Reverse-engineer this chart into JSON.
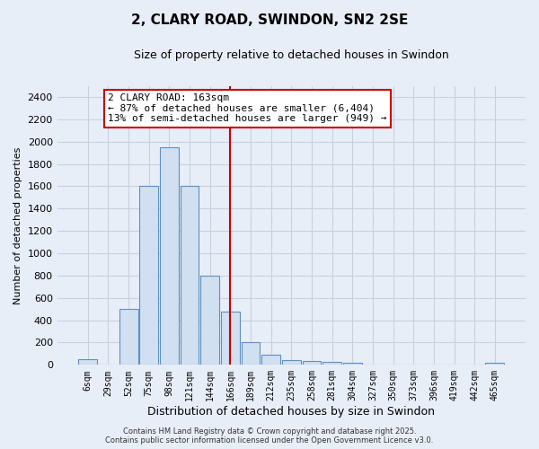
{
  "title": "2, CLARY ROAD, SWINDON, SN2 2SE",
  "subtitle": "Size of property relative to detached houses in Swindon",
  "xlabel": "Distribution of detached houses by size in Swindon",
  "ylabel": "Number of detached properties",
  "categories": [
    "6sqm",
    "29sqm",
    "52sqm",
    "75sqm",
    "98sqm",
    "121sqm",
    "144sqm",
    "166sqm",
    "189sqm",
    "212sqm",
    "235sqm",
    "258sqm",
    "281sqm",
    "304sqm",
    "327sqm",
    "350sqm",
    "373sqm",
    "396sqm",
    "419sqm",
    "442sqm",
    "465sqm"
  ],
  "values": [
    50,
    0,
    500,
    1600,
    1950,
    1600,
    800,
    480,
    200,
    90,
    40,
    35,
    25,
    15,
    0,
    0,
    0,
    0,
    0,
    0,
    20
  ],
  "bar_color": "#d0e0f0",
  "bar_edge_color": "#6090c0",
  "vline_x_index": 7,
  "vline_color": "#cc0000",
  "annotation_text": "2 CLARY ROAD: 163sqm\n← 87% of detached houses are smaller (6,404)\n13% of semi-detached houses are larger (949) →",
  "annotation_box_color": "#ffffff",
  "annotation_box_edge": "#cc0000",
  "footer": "Contains HM Land Registry data © Crown copyright and database right 2025.\nContains public sector information licensed under the Open Government Licence v3.0.",
  "bg_color": "#e8eef8",
  "grid_color": "#c8d0e0",
  "ylim": [
    0,
    2500
  ],
  "yticks": [
    0,
    200,
    400,
    600,
    800,
    1000,
    1200,
    1400,
    1600,
    1800,
    2000,
    2200,
    2400
  ],
  "title_fontsize": 11,
  "subtitle_fontsize": 9,
  "xlabel_fontsize": 9,
  "ylabel_fontsize": 8,
  "tick_fontsize": 8,
  "xtick_fontsize": 7,
  "footer_fontsize": 6,
  "annot_fontsize": 8
}
